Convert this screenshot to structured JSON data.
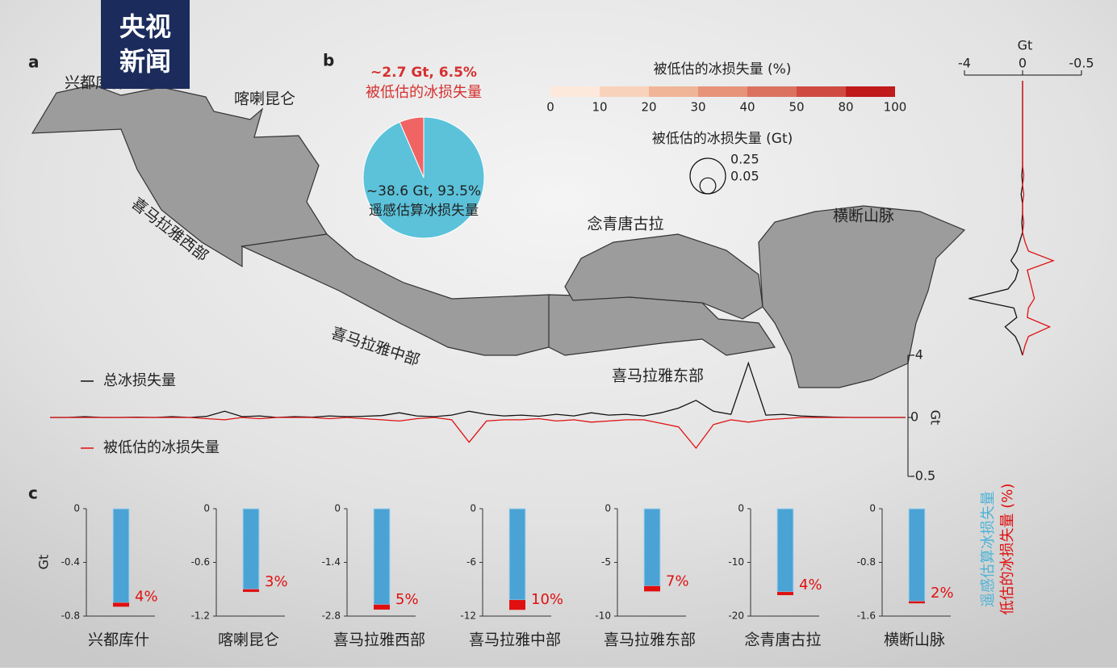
{
  "logo": {
    "line1": "央视",
    "line2": "新闻"
  },
  "panels": {
    "a": "a",
    "b": "b",
    "c": "c"
  },
  "map": {
    "regions": [
      "兴都库什",
      "喀喇昆仑",
      "喜马拉雅西部",
      "喜马拉雅中部",
      "喜马拉雅东部",
      "念青唐古拉",
      "横断山脉"
    ]
  },
  "legends": {
    "color": {
      "title": "被低估的冰损失量 (%)",
      "ticks": [
        0,
        10,
        20,
        30,
        40,
        50,
        80,
        100
      ],
      "colors": [
        "#fde9dc",
        "#f8d2bb",
        "#f0b597",
        "#e69379",
        "#db7260",
        "#cf4b41",
        "#c01a1a"
      ]
    },
    "size": {
      "title": "被低估的冰损失量 (Gt)",
      "values": [
        0.25,
        0.05
      ]
    },
    "panel_c": [
      {
        "label": "遥感估算冰损失量",
        "color": "#4db3d6"
      },
      {
        "label": "低估的冰损失量 (%)",
        "color": "#e01010"
      }
    ]
  },
  "chart_data": [
    {
      "type": "pie",
      "categories": [
        "遥感估算冰损失量",
        "被低估的冰损失量"
      ],
      "values": [
        93.5,
        6.5
      ],
      "value_labels": [
        "~38.6 Gt, 93.5%",
        "~2.7 Gt, 6.5%"
      ],
      "colors": [
        "#5bc2da",
        "#f06464"
      ]
    },
    {
      "type": "line",
      "ylabel": "Gt",
      "ylim": [
        0,
        -4
      ],
      "yticks": [
        0,
        -4
      ],
      "y2lim": [
        0,
        -0.5
      ],
      "y2ticks": [
        -0.5
      ],
      "series": [
        {
          "name": "总冰损失量",
          "color": "#111111",
          "values": [
            0,
            0,
            -0.05,
            0,
            0,
            -0.02,
            0,
            -0.05,
            0,
            -0.08,
            -0.4,
            -0.05,
            -0.1,
            0,
            -0.05,
            -0.02,
            -0.1,
            -0.05,
            -0.08,
            -0.12,
            -0.3,
            -0.1,
            -0.05,
            -0.15,
            -0.4,
            -0.2,
            -0.1,
            -0.15,
            -0.08,
            -0.2,
            -0.1,
            -0.3,
            -0.15,
            -0.2,
            -0.1,
            -0.3,
            -0.6,
            -1.1,
            -0.4,
            -0.2,
            -3.5,
            -0.15,
            -0.2,
            -0.1,
            -0.05,
            -0.02,
            0,
            0,
            0,
            0
          ]
        },
        {
          "name": "被低估的冰损失量",
          "color": "#e01010",
          "axis": "y2",
          "values": [
            0,
            0,
            0,
            0,
            0,
            0,
            0,
            0,
            0,
            -0.01,
            -0.02,
            0,
            -0.01,
            0,
            0,
            0,
            -0.01,
            0,
            -0.01,
            -0.02,
            -0.03,
            -0.01,
            0,
            -0.02,
            -0.21,
            -0.03,
            -0.02,
            -0.02,
            -0.01,
            -0.03,
            -0.02,
            -0.04,
            -0.03,
            -0.02,
            -0.02,
            -0.05,
            -0.08,
            -0.26,
            -0.06,
            -0.02,
            -0.04,
            -0.02,
            -0.01,
            0,
            0,
            0,
            0,
            0,
            0,
            0
          ]
        }
      ]
    },
    {
      "type": "line",
      "ylabel": "Gt",
      "ylim": [
        0,
        -4
      ],
      "yticks": [
        -4,
        0
      ],
      "y2lim": [
        0,
        -0.5
      ],
      "y2ticks": [
        -0.5
      ],
      "series": [
        {
          "color": "#111111",
          "values": [
            0,
            0,
            0,
            0,
            0,
            0,
            0,
            0,
            0,
            0,
            -0.05,
            0,
            -0.1,
            0,
            0,
            -0.05,
            0,
            -0.2,
            -0.4,
            -0.8,
            -0.3,
            -0.5,
            -1.0,
            -3.7,
            -0.6,
            -0.4,
            -1.2,
            -0.5,
            -0.2,
            0
          ]
        },
        {
          "color": "#e01010",
          "axis": "y2",
          "values": [
            0,
            0,
            0,
            0,
            0,
            0,
            0,
            0,
            0,
            0,
            -0.01,
            0,
            -0.01,
            0,
            0,
            -0.01,
            0,
            -0.02,
            -0.05,
            -0.26,
            -0.04,
            -0.06,
            -0.08,
            -0.1,
            -0.05,
            -0.04,
            -0.23,
            -0.05,
            -0.02,
            0
          ]
        }
      ]
    },
    {
      "type": "bar",
      "title": "兴都库什",
      "ylabel": "Gt",
      "ylim": [
        0,
        -0.8
      ],
      "yticks": [
        0,
        -0.4,
        -0.8
      ],
      "series": [
        {
          "color": "#4aa3d4",
          "values": [
            -0.7
          ]
        },
        {
          "color": "#e01010",
          "values": [
            -0.03
          ]
        }
      ],
      "share": {
        "value": 4,
        "label": "4%"
      }
    },
    {
      "type": "bar",
      "title": "喀喇昆仑",
      "ylim": [
        0,
        -1.2
      ],
      "yticks": [
        0,
        -0.6,
        -1.2
      ],
      "series": [
        {
          "color": "#4aa3d4",
          "values": [
            -0.9
          ]
        },
        {
          "color": "#e01010",
          "values": [
            -0.03
          ]
        }
      ],
      "share": {
        "value": 3,
        "label": "3%"
      }
    },
    {
      "type": "bar",
      "title": "喜马拉雅西部",
      "ylim": [
        0,
        -2.8
      ],
      "yticks": [
        0,
        -1.4,
        -2.8
      ],
      "series": [
        {
          "color": "#4aa3d4",
          "values": [
            -2.5
          ]
        },
        {
          "color": "#e01010",
          "values": [
            -0.13
          ]
        }
      ],
      "share": {
        "value": 5,
        "label": "5%"
      }
    },
    {
      "type": "bar",
      "title": "喜马拉雅中部",
      "ylim": [
        0,
        -12
      ],
      "yticks": [
        0,
        -6,
        -12
      ],
      "series": [
        {
          "color": "#4aa3d4",
          "values": [
            -10.2
          ]
        },
        {
          "color": "#e01010",
          "values": [
            -1.1
          ]
        }
      ],
      "share": {
        "value": 10,
        "label": "10%"
      }
    },
    {
      "type": "bar",
      "title": "喜马拉雅东部",
      "ylim": [
        0,
        -10
      ],
      "yticks": [
        0,
        -5,
        -10
      ],
      "series": [
        {
          "color": "#4aa3d4",
          "values": [
            -7.2
          ]
        },
        {
          "color": "#e01010",
          "values": [
            -0.5
          ]
        }
      ],
      "share": {
        "value": 7,
        "label": "7%"
      }
    },
    {
      "type": "bar",
      "title": "念青唐古拉",
      "ylim": [
        0,
        -20
      ],
      "yticks": [
        0,
        -10,
        -20
      ],
      "series": [
        {
          "color": "#4aa3d4",
          "values": [
            -15.5
          ]
        },
        {
          "color": "#e01010",
          "values": [
            -0.6
          ]
        }
      ],
      "share": {
        "value": 4,
        "label": "4%"
      }
    },
    {
      "type": "bar",
      "title": "横断山脉",
      "ylim": [
        0,
        -1.6
      ],
      "yticks": [
        0,
        -0.8,
        -1.6
      ],
      "series": [
        {
          "color": "#4aa3d4",
          "values": [
            -1.38
          ]
        },
        {
          "color": "#e01010",
          "values": [
            -0.03
          ]
        }
      ],
      "share": {
        "value": 2,
        "label": "2%"
      }
    }
  ]
}
